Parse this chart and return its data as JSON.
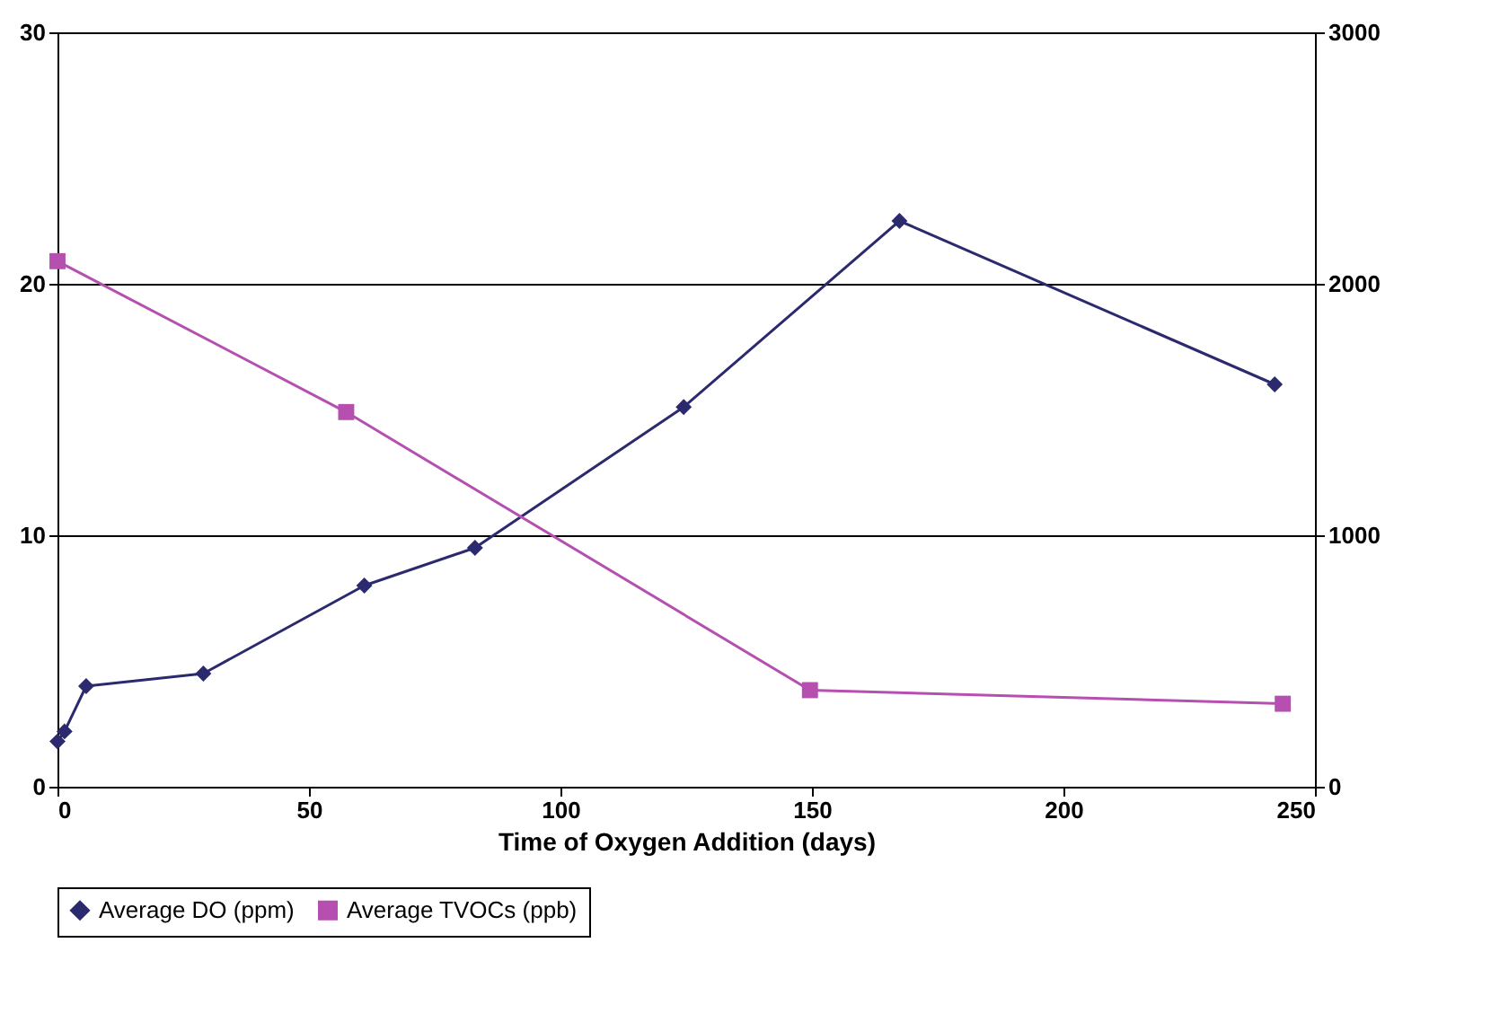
{
  "chart_data": {
    "type": "line",
    "xlabel": "Time of Oxygen Addition (days)",
    "xlim": [
      0,
      250
    ],
    "xticks": [
      0,
      50,
      100,
      150,
      200,
      250
    ],
    "ylim": [
      0,
      30
    ],
    "yticks": [
      0,
      10,
      20,
      30
    ],
    "y2lim": [
      0,
      3000
    ],
    "y2ticks": [
      0,
      1000,
      2000,
      3000
    ],
    "grid": "y",
    "legend": "bottom",
    "series": [
      {
        "name": "Average DO (ppm)",
        "color": "#2b2a6e",
        "marker": "diamond",
        "x": [
          0,
          1.4,
          5.7,
          29,
          61,
          83,
          124.5,
          167.4,
          242
        ],
        "values": [
          1.8,
          2.2,
          4.0,
          4.5,
          8.0,
          9.5,
          15.1,
          22.5,
          16.0
        ]
      },
      {
        "name": "Average TVOCs (ppb)",
        "color": "#b54fb0",
        "marker": "square",
        "axis": "y2",
        "x": [
          0,
          57.4,
          149.6,
          243.6
        ],
        "values": [
          2090,
          1490,
          384,
          330
        ]
      }
    ]
  }
}
